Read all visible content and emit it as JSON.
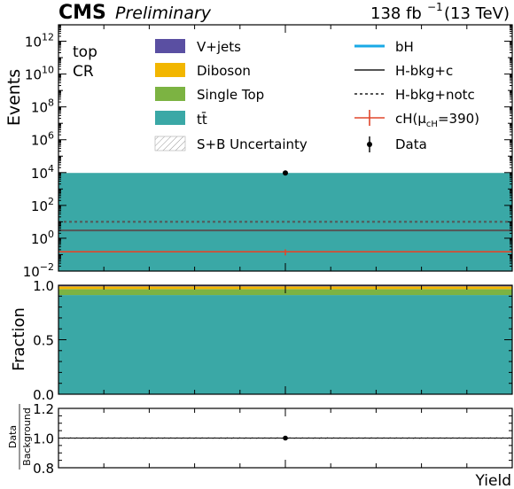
{
  "header": {
    "cms": "CMS",
    "preliminary": "Preliminary",
    "lumi": "138 fb",
    "lumi_exp": "−1",
    "energy": "(13 TeV)"
  },
  "region": {
    "line1": "top",
    "line2": "CR"
  },
  "colors": {
    "vjets": "#5a4fa2",
    "diboson": "#f2b600",
    "singletop": "#7cb342",
    "ttbar": "#3aa8a6",
    "bH": "#19a9e6",
    "hbkg": "#555555",
    "signal": "#e0462b",
    "data": "#000000"
  },
  "legend": {
    "vjets": "V+jets",
    "diboson": "Diboson",
    "singletop": "Single Top",
    "ttbar": "tt̄",
    "unc": "S+B Uncertainty",
    "bH": "bH",
    "hbkg_c": "H-bkg+c",
    "hbkg_notc": "H-bkg+notc",
    "signal": "cH(μ",
    "signal_sub": "cH",
    "signal_tail": "=390)",
    "data": "Data"
  },
  "chart_data": [
    {
      "type": "bar",
      "panel": "main",
      "ylabel": "Events",
      "yscale": "log",
      "ylim": [
        0.01,
        10000000000000.0
      ],
      "yticks_exp": [
        -2,
        0,
        2,
        4,
        6,
        8,
        10,
        12
      ],
      "ytick_base": "10",
      "stack_total": 9500,
      "data_point": {
        "x": 0.5,
        "y": 9500
      },
      "hbkg_notc": 10,
      "hbkg_c": 3,
      "signal": 0.15,
      "signal_err": 0.02
    },
    {
      "type": "bar",
      "panel": "fraction",
      "ylabel": "Fraction",
      "ylim": [
        0,
        1
      ],
      "yticks": [
        "0.0",
        "0.5",
        "1.0"
      ],
      "fractions": {
        "ttbar": 0.91,
        "singletop": 0.055,
        "diboson": 0.025,
        "vjets": 0.01
      }
    },
    {
      "type": "scatter",
      "panel": "ratio",
      "ylabel_num": "Data",
      "ylabel_den": "Background",
      "ylim": [
        0.8,
        1.2
      ],
      "yticks": [
        "0.8",
        "1.0",
        "1.2"
      ],
      "band": [
        0.99,
        1.01
      ],
      "points": [
        {
          "x": 0.5,
          "y": 1.0
        }
      ],
      "xlabel": "Yield"
    }
  ]
}
